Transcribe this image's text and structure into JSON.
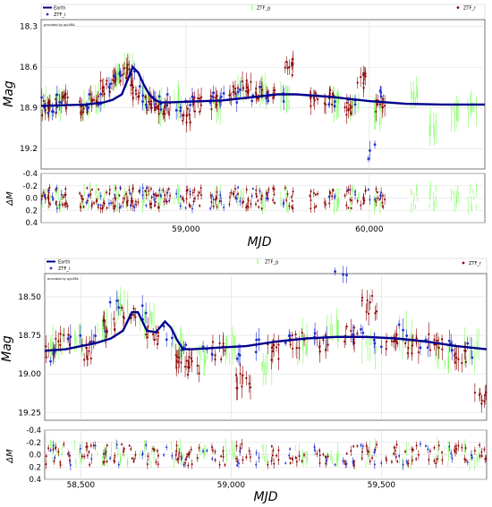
{
  "chart_data": [
    {
      "type": "scatter",
      "legend": [
        "Earth",
        "ZTF_i",
        "ZTF_g",
        "ZTF_r"
      ],
      "legend_placement": "top",
      "annotation": "provided by pyLIMA",
      "ylabel": "Mag",
      "ylabel_residual": "ΔM",
      "xlabel": "MJD",
      "xlim": [
        58210,
        60630
      ],
      "ylim": [
        19.35,
        18.25
      ],
      "residual_ylim": [
        0.4,
        -0.4
      ],
      "ytick_labels": [
        "18.3",
        "18.6",
        "18.9",
        "19.2"
      ],
      "residual_ytick_labels": [
        "-0.4",
        "-0.2",
        "0.0",
        "0.2",
        "0.4"
      ],
      "xtick_labels": [
        "59,000",
        "60,000"
      ],
      "grid": true,
      "model": {
        "name": "Earth",
        "x": [
          58210,
          58450,
          58550,
          58600,
          58650,
          58680,
          58710,
          58740,
          58770,
          58800,
          58830,
          58860,
          58900,
          59000,
          59200,
          59400,
          59500,
          59600,
          59800,
          60000,
          60200,
          60400,
          60630
        ],
        "y": [
          18.885,
          18.875,
          18.86,
          18.84,
          18.8,
          18.7,
          18.6,
          18.64,
          18.73,
          18.8,
          18.84,
          18.86,
          18.86,
          18.855,
          18.845,
          18.815,
          18.8,
          18.8,
          18.82,
          18.85,
          18.87,
          18.875,
          18.875
        ]
      },
      "series": [
        {
          "name": "ZTF_i",
          "x": [
            58230,
            58280,
            58320,
            58450,
            58520,
            58600,
            58660,
            58700,
            58760,
            58800,
            58850,
            58880,
            58950,
            59010,
            59150,
            59200,
            59300,
            59380,
            59450,
            59520,
            59800,
            59900,
            60020,
            60040
          ],
          "y": [
            18.88,
            18.9,
            18.86,
            18.84,
            18.83,
            18.7,
            18.65,
            18.62,
            18.8,
            18.85,
            18.87,
            18.86,
            18.88,
            18.86,
            18.84,
            18.85,
            18.81,
            18.79,
            18.8,
            18.82,
            18.83,
            18.85,
            19.22,
            18.8
          ]
        },
        {
          "name": "ZTF_g",
          "x": [
            58240,
            58300,
            58460,
            58530,
            58610,
            58690,
            58780,
            58870,
            58960,
            59180,
            59290,
            59420,
            59540,
            59820,
            59920,
            60050,
            60250,
            60350,
            60470,
            60560
          ],
          "y": [
            18.9,
            18.85,
            18.88,
            18.82,
            18.65,
            18.6,
            18.8,
            18.9,
            18.85,
            18.9,
            18.78,
            18.8,
            18.82,
            18.86,
            18.9,
            18.95,
            18.8,
            19.05,
            18.95,
            18.9
          ]
        },
        {
          "name": "ZTF_r",
          "x": [
            58220,
            58270,
            58330,
            58440,
            58500,
            58560,
            58620,
            58680,
            58720,
            58790,
            58830,
            58900,
            59000,
            59060,
            59160,
            59260,
            59330,
            59390,
            59460,
            59560,
            59700,
            59780,
            59880,
            59960,
            60060
          ],
          "y": [
            18.9,
            18.88,
            18.85,
            18.9,
            18.86,
            18.75,
            18.68,
            18.63,
            18.78,
            18.86,
            18.9,
            18.92,
            18.95,
            18.88,
            18.85,
            18.8,
            18.75,
            18.78,
            18.8,
            18.6,
            18.85,
            18.82,
            18.9,
            18.7,
            18.88
          ]
        }
      ]
    },
    {
      "type": "scatter",
      "legend": [
        "Earth",
        "ZTF_i",
        "ZTF_g",
        "ZTF_r"
      ],
      "legend_placement": "top",
      "annotation": "provided by pyLIMA",
      "ylabel": "Mag",
      "ylabel_residual": "ΔM",
      "xlabel": "MJD",
      "xlim": [
        58380,
        59850
      ],
      "ylim": [
        19.3,
        18.35
      ],
      "residual_ylim": [
        0.4,
        -0.4
      ],
      "ytick_labels": [
        "18.50",
        "18.75",
        "19.00",
        "19.25"
      ],
      "residual_ytick_labels": [
        "-0.4",
        "-0.2",
        "0.0",
        "0.2",
        "0.4"
      ],
      "xtick_labels": [
        "58,500",
        "59,000",
        "59,500"
      ],
      "grid": true,
      "model": {
        "name": "Earth",
        "x": [
          58380,
          58450,
          58550,
          58600,
          58640,
          58670,
          58690,
          58720,
          58750,
          58780,
          58800,
          58820,
          58840,
          58870,
          58950,
          59050,
          59150,
          59250,
          59350,
          59450,
          59550,
          59650,
          59750,
          59850
        ],
        "y": [
          18.85,
          18.84,
          18.8,
          18.77,
          18.72,
          18.6,
          18.6,
          18.72,
          18.73,
          18.66,
          18.7,
          18.78,
          18.84,
          18.84,
          18.83,
          18.82,
          18.79,
          18.77,
          18.76,
          18.76,
          18.77,
          18.79,
          18.82,
          18.84
        ]
      },
      "series": [
        {
          "name": "ZTF_i",
          "x": [
            58400,
            58480,
            58560,
            58620,
            58700,
            58800,
            58860,
            58930,
            59010,
            59100,
            59200,
            59300,
            59360,
            59420,
            59500,
            59560,
            59640,
            59720,
            59780
          ],
          "y": [
            18.86,
            18.8,
            18.75,
            18.55,
            18.6,
            18.75,
            18.82,
            18.84,
            18.86,
            18.82,
            18.8,
            18.78,
            18.35,
            18.76,
            18.8,
            18.74,
            18.8,
            18.82,
            18.85
          ]
        },
        {
          "name": "ZTF_g",
          "x": [
            58420,
            58500,
            58580,
            58640,
            58720,
            58820,
            58900,
            59000,
            59120,
            59240,
            59340,
            59460,
            59580,
            59700,
            59800
          ],
          "y": [
            18.82,
            18.78,
            18.7,
            18.55,
            18.65,
            18.8,
            18.9,
            18.85,
            18.95,
            18.8,
            18.72,
            18.82,
            18.75,
            18.9,
            18.85
          ]
        },
        {
          "name": "ZTF_r",
          "x": [
            58390,
            58440,
            58520,
            58600,
            58660,
            58740,
            58840,
            58880,
            58960,
            59040,
            59140,
            59220,
            59310,
            59400,
            59460,
            59530,
            59600,
            59680,
            59760,
            59830
          ],
          "y": [
            18.87,
            18.8,
            18.85,
            18.7,
            18.58,
            18.75,
            18.9,
            18.95,
            18.85,
            19.05,
            18.85,
            18.78,
            18.8,
            18.75,
            18.55,
            18.78,
            18.82,
            18.8,
            18.9,
            19.15
          ]
        }
      ]
    }
  ],
  "colors": {
    "Earth": "#00008b",
    "ZTF_i": "#1f2fcf",
    "ZTF_g": "#7cfc5a",
    "ZTF_r": "#8b0000"
  }
}
